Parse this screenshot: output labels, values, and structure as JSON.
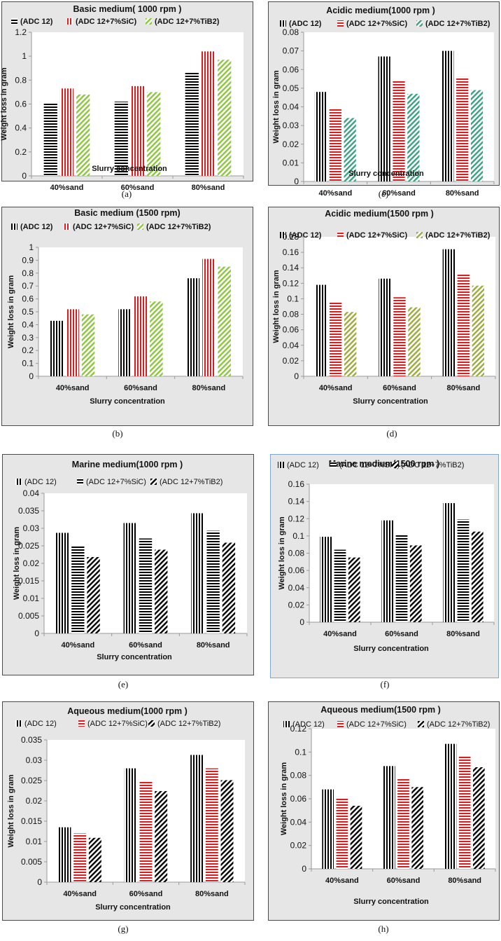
{
  "chart_data": [
    {
      "type": "bar",
      "panel_label": "(a)",
      "title": "Basic medium( 1000 rpm )",
      "xlabel": "Slurry concentration",
      "ylabel": "Weight loss in gram",
      "categories": [
        "40%sand",
        "60%sand",
        "80%sand"
      ],
      "ylim": [
        0,
        1.2
      ],
      "yticks": [
        "0",
        "0.2",
        "0.4",
        "0.6",
        "0.8",
        "1",
        "1.2"
      ],
      "legend_bold": true,
      "series": [
        {
          "name": "(ADC 12)",
          "pattern": "h",
          "color": "#000000",
          "values": [
            0.61,
            0.62,
            0.87
          ]
        },
        {
          "name": "(ADC 12+7%SiC)",
          "pattern": "v",
          "color": "#e31a1c",
          "values": [
            0.73,
            0.75,
            1.04
          ]
        },
        {
          "name": "(ADC 12+7%TiB2)",
          "pattern": "d",
          "color": "#8cc63f",
          "values": [
            0.68,
            0.7,
            0.97
          ]
        }
      ]
    },
    {
      "type": "bar",
      "panel_label": "(c)",
      "title": "Acidic medium(1000 rpm )",
      "xlabel": "Slurry concentration",
      "ylabel": "Weight loss in gram",
      "categories": [
        "40%sand",
        "60%sand",
        "80%sand"
      ],
      "ylim": [
        0,
        0.08
      ],
      "yticks": [
        "0",
        "0.01",
        "0.02",
        "0.03",
        "0.04",
        "0.05",
        "0.06",
        "0.07",
        "0.08"
      ],
      "legend_bold": true,
      "series": [
        {
          "name": "(ADC 12)",
          "pattern": "v",
          "color": "#000000",
          "values": [
            0.048,
            0.067,
            0.07
          ]
        },
        {
          "name": "(ADC 12+7%SiC)",
          "pattern": "h",
          "color": "#e31a1c",
          "values": [
            0.039,
            0.054,
            0.056
          ]
        },
        {
          "name": "(ADC 12+7%TiB2)",
          "pattern": "d",
          "color": "#3aa17e",
          "values": [
            0.034,
            0.047,
            0.049
          ]
        }
      ]
    },
    {
      "type": "bar",
      "panel_label": "(b)",
      "title": "Basic medium (1500 rpm)",
      "xlabel": "Slurry concentration",
      "ylabel": "Weight loss in gram",
      "categories": [
        "40%sand",
        "60%sand",
        "80%sand"
      ],
      "ylim": [
        0,
        1
      ],
      "yticks": [
        "0",
        "0.1",
        "0.2",
        "0.3",
        "0.4",
        "0.5",
        "0.6",
        "0.7",
        "0.8",
        "0.9",
        "1"
      ],
      "legend_bold": true,
      "series": [
        {
          "name": "(ADC 12)",
          "pattern": "v",
          "color": "#000000",
          "values": [
            0.43,
            0.52,
            0.76
          ]
        },
        {
          "name": "(ADC 12+7%SiC)",
          "pattern": "v",
          "color": "#e31a1c",
          "values": [
            0.52,
            0.62,
            0.91
          ]
        },
        {
          "name": "(ADC 12+7%TiB2)",
          "pattern": "d",
          "color": "#8cc63f",
          "values": [
            0.48,
            0.58,
            0.85
          ]
        }
      ]
    },
    {
      "type": "bar",
      "panel_label": "(d)",
      "title": "Acidic medium(1500 rpm )",
      "xlabel": "Slurry concentration",
      "ylabel": "Weight loss in gram",
      "categories": [
        "40%sand",
        "60%sand",
        "80%sand"
      ],
      "ylim": [
        0,
        0.18
      ],
      "yticks": [
        "0",
        "0.02",
        "0.04",
        "0.06",
        "0.08",
        "0.1",
        "0.12",
        "0.14",
        "0.16",
        "0.18"
      ],
      "legend_bold": true,
      "series": [
        {
          "name": "(ADC 12)",
          "pattern": "v",
          "color": "#000000",
          "values": [
            0.118,
            0.126,
            0.164
          ]
        },
        {
          "name": "(ADC 12+7%SiC)",
          "pattern": "h",
          "color": "#e31a1c",
          "values": [
            0.095,
            0.102,
            0.133
          ]
        },
        {
          "name": "(ADC 12+7%TiB2)",
          "pattern": "d",
          "color": "#9aab3c",
          "values": [
            0.083,
            0.089,
            0.117
          ]
        }
      ]
    },
    {
      "type": "bar",
      "panel_label": "(e)",
      "title": "Marine medium(1000 rpm )",
      "xlabel": "Slurry concentration",
      "ylabel": "Weight loss in gram",
      "categories": [
        "40%sand",
        "60%sand",
        "80%sand"
      ],
      "ylim": [
        0,
        0.04
      ],
      "yticks": [
        "0",
        "0.005",
        "0.01",
        "0.015",
        "0.02",
        "0.025",
        "0.03",
        "0.035",
        "0.04"
      ],
      "legend_bold": false,
      "series": [
        {
          "name": "(ADC 12)",
          "pattern": "v",
          "color": "#000000",
          "values": [
            0.0287,
            0.0315,
            0.0343
          ]
        },
        {
          "name": "(ADC 12+7%SiC)",
          "pattern": "h",
          "color": "#000000",
          "values": [
            0.0248,
            0.0271,
            0.0293
          ]
        },
        {
          "name": "(ADC 12+7%TiB2)",
          "pattern": "d",
          "color": "#000000",
          "values": [
            0.0218,
            0.0239,
            0.0259
          ]
        }
      ]
    },
    {
      "type": "bar",
      "panel_label": "(f)",
      "title": "Marine medium(1500 rpm )",
      "xlabel": "Slurry concentration",
      "ylabel": "Weight loss in gram",
      "categories": [
        "40%sand",
        "60%sand",
        "80%sand"
      ],
      "ylim": [
        0,
        0.16
      ],
      "yticks": [
        "0",
        "0.02",
        "0.04",
        "0.06",
        "0.08",
        "0.1",
        "0.12",
        "0.14",
        "0.16"
      ],
      "legend_bold": false,
      "series": [
        {
          "name": "(ADC 12)",
          "pattern": "v",
          "color": "#000000",
          "values": [
            0.099,
            0.118,
            0.138
          ]
        },
        {
          "name": "(ADC 12+7%SiC)",
          "pattern": "h",
          "color": "#000000",
          "values": [
            0.084,
            0.101,
            0.119
          ]
        },
        {
          "name": "(ADC 12+7%TiB2)",
          "pattern": "d",
          "color": "#000000",
          "values": [
            0.075,
            0.089,
            0.105
          ]
        }
      ]
    },
    {
      "type": "bar",
      "panel_label": "(g)",
      "title": "Aqueous medium(1000 rpm )",
      "xlabel": "Slurry concentration",
      "ylabel": "Weight loss in gram",
      "categories": [
        "40%sand",
        "60%sand",
        "80%sand"
      ],
      "ylim": [
        0,
        0.035
      ],
      "yticks": [
        "0",
        "0.005",
        "0.01",
        "0.015",
        "0.02",
        "0.025",
        "0.03",
        "0.035"
      ],
      "legend_bold": false,
      "series": [
        {
          "name": "(ADC 12)",
          "pattern": "v",
          "color": "#000000",
          "values": [
            0.0135,
            0.028,
            0.0313
          ]
        },
        {
          "name": "(ADC 12+7%SiC)",
          "pattern": "h",
          "color": "#e31a1c",
          "values": [
            0.012,
            0.0248,
            0.028
          ]
        },
        {
          "name": "(ADC 12+7%TiB2)",
          "pattern": "d",
          "color": "#000000",
          "values": [
            0.0109,
            0.0224,
            0.0251
          ]
        }
      ]
    },
    {
      "type": "bar",
      "panel_label": "(h)",
      "title": "Aqueous medium(1500 rpm )",
      "xlabel": "Slurry concentration",
      "ylabel": "Weight loss in gram",
      "categories": [
        "40%sand",
        "60%sand",
        "80%sand"
      ],
      "ylim": [
        0,
        0.12
      ],
      "yticks": [
        "0",
        "0.02",
        "0.04",
        "0.06",
        "0.08",
        "0.1",
        "0.12"
      ],
      "legend_bold": false,
      "series": [
        {
          "name": "(ADC 12)",
          "pattern": "v",
          "color": "#000000",
          "values": [
            0.068,
            0.088,
            0.107
          ]
        },
        {
          "name": "(ADC 12+7%SiC)",
          "pattern": "h",
          "color": "#e31a1c",
          "values": [
            0.061,
            0.078,
            0.096
          ]
        },
        {
          "name": "(ADC 12+7%TiB2)",
          "pattern": "d",
          "color": "#000000",
          "values": [
            0.054,
            0.07,
            0.087
          ]
        }
      ]
    }
  ]
}
